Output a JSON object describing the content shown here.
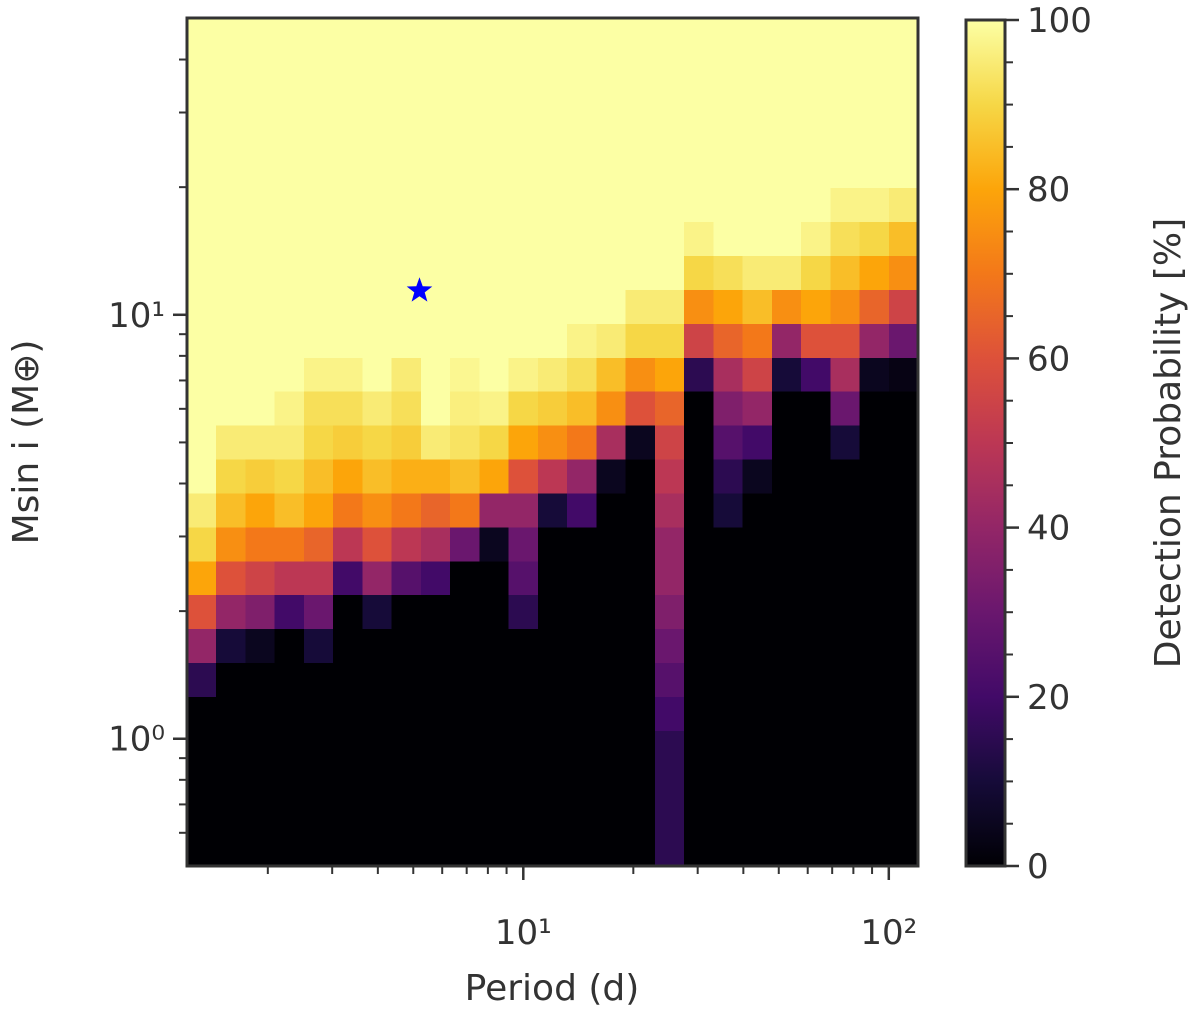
{
  "chart_data": {
    "type": "heatmap",
    "colormap": "inferno",
    "xlabel": "Period (d)",
    "ylabel": "Msin i (M⊕)",
    "xscale": "log",
    "yscale": "log",
    "xlim": [
      1.202,
      120.2
    ],
    "ylim": [
      0.501,
      50.12
    ],
    "xticks": [
      {
        "value": 10,
        "label": "10¹"
      },
      {
        "value": 100,
        "label": "10²"
      }
    ],
    "xticks_minor": [
      2,
      3,
      4,
      5,
      6,
      7,
      8,
      9,
      20,
      30,
      40,
      50,
      60,
      70,
      80,
      90
    ],
    "yticks": [
      {
        "value": 1,
        "label": "10⁰"
      },
      {
        "value": 10,
        "label": "10¹"
      }
    ],
    "yticks_minor": [
      0.6,
      0.7,
      0.8,
      0.9,
      2,
      3,
      4,
      5,
      6,
      7,
      8,
      9,
      20,
      30,
      40
    ],
    "xbins": [
      1.202,
      1.445,
      1.738,
      2.089,
      2.512,
      3.02,
      3.631,
      4.365,
      5.248,
      6.31,
      7.586,
      9.12,
      10.96,
      13.18,
      15.85,
      19.05,
      22.91,
      27.54,
      33.11,
      39.81,
      47.86,
      57.54,
      69.18,
      83.18,
      100,
      120.2
    ],
    "ybins": [
      0.501,
      0.603,
      0.724,
      0.871,
      1.047,
      1.259,
      1.514,
      1.82,
      2.188,
      2.63,
      3.162,
      3.802,
      4.571,
      5.495,
      6.607,
      7.943,
      9.55,
      11.48,
      13.8,
      16.6,
      19.95,
      23.99,
      28.84,
      34.67,
      41.69,
      50.12
    ],
    "values": [
      [
        0,
        0,
        0,
        0,
        0,
        15,
        40,
        60,
        80,
        90,
        95,
        100,
        100,
        100,
        100,
        100,
        100,
        100,
        100,
        100,
        100,
        100,
        100,
        100,
        100
      ],
      [
        0,
        0,
        0,
        0,
        0,
        0,
        10,
        40,
        60,
        75,
        85,
        90,
        95,
        100,
        100,
        100,
        100,
        100,
        100,
        100,
        100,
        100,
        100,
        100,
        100
      ],
      [
        0,
        0,
        0,
        0,
        0,
        0,
        5,
        35,
        55,
        70,
        80,
        88,
        95,
        100,
        100,
        100,
        100,
        100,
        100,
        100,
        100,
        100,
        100,
        100,
        100
      ],
      [
        0,
        0,
        0,
        0,
        0,
        0,
        0,
        20,
        50,
        70,
        85,
        90,
        95,
        97,
        100,
        100,
        100,
        100,
        100,
        100,
        100,
        100,
        100,
        100,
        100
      ],
      [
        0,
        0,
        0,
        0,
        0,
        0,
        10,
        30,
        50,
        65,
        80,
        85,
        90,
        92,
        97,
        100,
        100,
        100,
        100,
        100,
        100,
        100,
        100,
        100,
        100
      ],
      [
        0,
        0,
        0,
        0,
        0,
        0,
        0,
        0,
        20,
        50,
        70,
        80,
        88,
        92,
        97,
        100,
        100,
        100,
        100,
        100,
        100,
        100,
        100,
        100,
        100
      ],
      [
        0,
        0,
        0,
        0,
        0,
        0,
        0,
        10,
        40,
        60,
        75,
        85,
        90,
        95,
        100,
        100,
        100,
        100,
        100,
        100,
        100,
        100,
        100,
        100,
        100
      ],
      [
        0,
        0,
        0,
        0,
        0,
        0,
        0,
        0,
        25,
        50,
        70,
        82,
        88,
        92,
        95,
        100,
        100,
        100,
        100,
        100,
        100,
        100,
        100,
        100,
        100
      ],
      [
        0,
        0,
        0,
        0,
        0,
        0,
        0,
        0,
        20,
        45,
        65,
        82,
        95,
        100,
        100,
        100,
        100,
        100,
        100,
        100,
        100,
        100,
        100,
        100,
        100
      ],
      [
        0,
        0,
        0,
        0,
        0,
        0,
        0,
        0,
        0,
        30,
        70,
        85,
        93,
        96,
        98,
        100,
        100,
        100,
        100,
        100,
        100,
        100,
        100,
        100,
        100
      ],
      [
        0,
        0,
        0,
        0,
        0,
        0,
        0,
        0,
        0,
        5,
        40,
        80,
        90,
        97,
        100,
        100,
        100,
        100,
        100,
        100,
        100,
        100,
        100,
        100,
        100
      ],
      [
        0,
        0,
        0,
        0,
        0,
        0,
        0,
        15,
        25,
        30,
        40,
        60,
        80,
        90,
        97,
        100,
        100,
        100,
        100,
        100,
        100,
        100,
        100,
        100,
        100
      ],
      [
        0,
        0,
        0,
        0,
        0,
        0,
        0,
        0,
        0,
        0,
        10,
        50,
        75,
        88,
        95,
        100,
        100,
        100,
        100,
        100,
        100,
        100,
        100,
        100,
        100
      ],
      [
        0,
        0,
        0,
        0,
        0,
        0,
        0,
        0,
        0,
        0,
        20,
        40,
        70,
        85,
        92,
        97,
        100,
        100,
        100,
        100,
        100,
        100,
        100,
        100,
        100
      ],
      [
        0,
        0,
        0,
        0,
        0,
        0,
        0,
        0,
        0,
        0,
        0,
        5,
        45,
        75,
        85,
        95,
        100,
        100,
        100,
        100,
        100,
        100,
        100,
        100,
        100
      ],
      [
        0,
        0,
        0,
        0,
        0,
        0,
        0,
        0,
        0,
        0,
        0,
        0,
        5,
        60,
        75,
        90,
        95,
        100,
        100,
        100,
        100,
        100,
        100,
        100,
        100
      ],
      [
        15,
        15,
        15,
        15,
        20,
        25,
        30,
        35,
        40,
        40,
        45,
        50,
        55,
        65,
        80,
        90,
        95,
        100,
        100,
        100,
        100,
        100,
        100,
        100,
        100
      ],
      [
        0,
        0,
        0,
        0,
        0,
        0,
        0,
        0,
        0,
        0,
        0,
        0,
        0,
        0,
        15,
        55,
        75,
        90,
        97,
        100,
        100,
        100,
        100,
        100,
        100
      ],
      [
        0,
        0,
        0,
        0,
        0,
        0,
        0,
        0,
        0,
        0,
        10,
        15,
        25,
        35,
        45,
        65,
        80,
        92,
        100,
        100,
        100,
        100,
        100,
        100,
        100
      ],
      [
        0,
        0,
        0,
        0,
        0,
        0,
        0,
        0,
        0,
        0,
        0,
        5,
        20,
        40,
        55,
        70,
        85,
        95,
        100,
        100,
        100,
        100,
        100,
        100,
        100
      ],
      [
        0,
        0,
        0,
        0,
        0,
        0,
        0,
        0,
        0,
        0,
        0,
        0,
        0,
        0,
        10,
        40,
        75,
        95,
        100,
        100,
        100,
        100,
        100,
        100,
        100
      ],
      [
        0,
        0,
        0,
        0,
        0,
        0,
        0,
        0,
        0,
        0,
        0,
        0,
        0,
        0,
        20,
        60,
        80,
        90,
        97,
        100,
        100,
        100,
        100,
        100,
        100
      ],
      [
        0,
        0,
        0,
        0,
        0,
        0,
        0,
        0,
        0,
        0,
        0,
        0,
        10,
        30,
        45,
        60,
        75,
        85,
        92,
        97,
        100,
        100,
        100,
        100,
        100
      ],
      [
        0,
        0,
        0,
        0,
        0,
        0,
        0,
        0,
        0,
        0,
        0,
        0,
        0,
        0,
        5,
        40,
        65,
        80,
        90,
        97,
        100,
        100,
        100,
        100,
        100
      ],
      [
        0,
        0,
        0,
        0,
        0,
        0,
        0,
        0,
        0,
        0,
        0,
        0,
        0,
        0,
        3,
        30,
        55,
        75,
        85,
        95,
        100,
        100,
        100,
        100,
        100
      ]
    ],
    "marker": {
      "x": 5.2,
      "y": 11.4,
      "color": "#0000ff"
    },
    "colorbar": {
      "label": "Detection Probability [%]",
      "lim": [
        0,
        100
      ],
      "ticks": [
        0,
        20,
        40,
        60,
        80,
        100
      ],
      "ticks_minor": [
        5,
        10,
        15,
        25,
        30,
        35,
        45,
        50,
        55,
        65,
        70,
        75,
        85,
        90,
        95
      ]
    }
  }
}
